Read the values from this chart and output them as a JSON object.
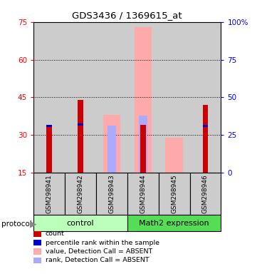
{
  "title": "GDS3436 / 1369615_at",
  "samples": [
    "GSM298941",
    "GSM298942",
    "GSM298943",
    "GSM298944",
    "GSM298945",
    "GSM298946"
  ],
  "group_colors": [
    "#bbffbb",
    "#55dd55"
  ],
  "bar_bg_color": "#cccccc",
  "ylim_left": [
    15,
    75
  ],
  "ylim_right": [
    0,
    100
  ],
  "yticks_left": [
    15,
    30,
    45,
    60,
    75
  ],
  "yticks_right": [
    0,
    25,
    50,
    75,
    100
  ],
  "count_values": [
    34,
    44,
    null,
    34,
    null,
    42
  ],
  "percentile_values": [
    31,
    32,
    null,
    null,
    null,
    31
  ],
  "absent_value_values": [
    null,
    null,
    38,
    73,
    29,
    null
  ],
  "absent_rank_values": [
    null,
    null,
    31,
    38,
    null,
    null
  ],
  "count_color": "#cc0000",
  "percentile_color": "#0000cc",
  "absent_value_color": "#ffaaaa",
  "absent_rank_color": "#aaaaff",
  "bar_bottom": 15,
  "legend_items": [
    {
      "label": "count",
      "color": "#cc0000"
    },
    {
      "label": "percentile rank within the sample",
      "color": "#0000cc"
    },
    {
      "label": "value, Detection Call = ABSENT",
      "color": "#ffaaaa"
    },
    {
      "label": "rank, Detection Call = ABSENT",
      "color": "#aaaaff"
    }
  ]
}
